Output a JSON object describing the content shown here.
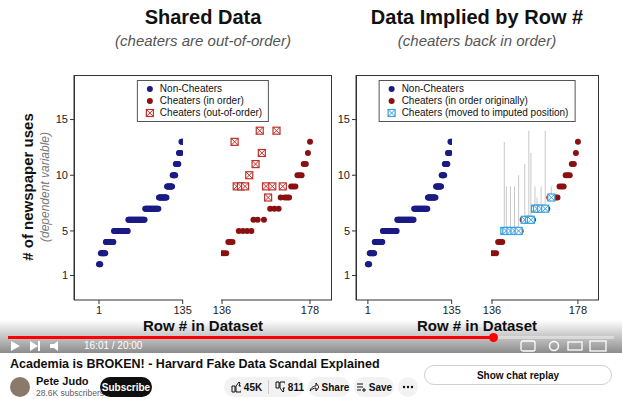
{
  "chart_data": [
    {
      "type": "scatter",
      "title": "Shared Data",
      "subtitle": "(cheaters are out-of-order)",
      "y_label": "# of newspaper uses",
      "y_label_note": "(dependent variable)",
      "x_label": "Row # in Dataset",
      "ylim": [
        -1.2,
        19
      ],
      "yticks": [
        1,
        5,
        10,
        15
      ],
      "legend": "top",
      "x_axes": [
        {
          "xlim": [
            -39,
            135.5
          ],
          "xticks": [
            1,
            135
          ]
        },
        {
          "xlim": [
            135.5,
            188.5
          ],
          "xticks": [
            136,
            178
          ]
        }
      ],
      "series": [
        {
          "name": "Non-Cheaters",
          "color": "#1b1b85",
          "marker": "circle",
          "x": [
            1,
            2,
            3,
            4,
            5,
            6,
            7,
            8,
            9,
            10,
            11,
            12,
            13,
            14,
            15,
            16,
            17,
            18,
            19,
            20,
            21,
            22,
            23,
            24,
            25,
            26,
            27,
            28,
            29,
            30,
            31,
            32,
            33,
            34,
            35,
            36,
            37,
            38,
            39,
            40,
            41,
            42,
            43,
            44,
            45,
            46,
            47,
            48,
            49,
            50,
            51,
            52,
            53,
            54,
            55,
            56,
            57,
            58,
            59,
            60,
            61,
            62,
            63,
            64,
            65,
            66,
            67,
            68,
            69,
            70,
            71,
            72,
            73,
            74,
            75,
            76,
            77,
            78,
            79,
            80,
            81,
            82,
            83,
            84,
            85,
            86,
            87,
            88,
            89,
            90,
            91,
            92,
            93,
            94,
            95,
            96,
            97,
            98,
            99,
            100,
            101,
            102,
            103,
            104,
            105,
            106,
            107,
            108,
            109,
            110,
            111,
            112,
            113,
            114,
            115,
            116,
            117,
            118,
            119,
            120,
            121,
            122,
            123,
            124,
            125,
            126,
            127,
            128,
            129,
            130,
            131,
            132,
            133,
            134,
            135
          ],
          "values": [
            2,
            2,
            2,
            3,
            3,
            3,
            3,
            3,
            3,
            3,
            3,
            4,
            4,
            4,
            4,
            4,
            4,
            4,
            4,
            4,
            4,
            4,
            4,
            4,
            5,
            5,
            5,
            5,
            5,
            5,
            5,
            5,
            5,
            5,
            5,
            5,
            5,
            5,
            5,
            5,
            5,
            5,
            5,
            5,
            5,
            5,
            5,
            6,
            6,
            6,
            6,
            6,
            6,
            6,
            6,
            6,
            6,
            6,
            6,
            6,
            6,
            6,
            6,
            6,
            6,
            6,
            6,
            6,
            6,
            6,
            6,
            6,
            6,
            6,
            7,
            7,
            7,
            7,
            7,
            7,
            7,
            7,
            7,
            7,
            7,
            7,
            7,
            7,
            7,
            7,
            7,
            7,
            7,
            7,
            7,
            7,
            8,
            8,
            8,
            8,
            8,
            8,
            8,
            8,
            8,
            8,
            8,
            8,
            8,
            9,
            9,
            9,
            9,
            9,
            9,
            9,
            9,
            9,
            10,
            10,
            10,
            10,
            10,
            11,
            11,
            11,
            11,
            11,
            12,
            12,
            12,
            12,
            13,
            13,
            13
          ]
        },
        {
          "name": "Cheaters (in order)",
          "color": "#8b1010",
          "marker": "circle",
          "x": [
            136,
            137,
            138,
            139,
            140,
            141,
            144,
            146,
            148,
            150,
            151,
            153,
            156,
            159,
            161,
            163,
            164,
            166,
            167,
            168,
            169,
            170,
            171,
            172,
            173,
            174,
            175,
            176,
            177,
            178
          ],
          "values": [
            3,
            3,
            3,
            4,
            4,
            4,
            5,
            5,
            5,
            5,
            6,
            6,
            6,
            7,
            7,
            7,
            8,
            8,
            8,
            8,
            9,
            9,
            9,
            10,
            10,
            10,
            11,
            11,
            12,
            13
          ]
        },
        {
          "name": "Cheaters (out-of-order)",
          "color": "#c0302b",
          "marker": "boxed-x",
          "x": [
            142,
            143,
            145,
            147,
            149,
            152,
            154,
            155,
            157,
            158,
            160,
            162,
            165
          ],
          "values": [
            13,
            9,
            9,
            9,
            10,
            11,
            14,
            12,
            9,
            8,
            9,
            14,
            9
          ]
        }
      ]
    },
    {
      "type": "scatter",
      "title": "Data Implied by Row #",
      "subtitle": "(cheaters back in order)",
      "x_label": "Row # in Dataset",
      "ylim": [
        -1.2,
        19
      ],
      "yticks": [
        1,
        5,
        10,
        15
      ],
      "legend": "top",
      "x_axes": [
        {
          "xlim": [
            -18,
            135.5
          ],
          "xticks": [
            1,
            135
          ]
        },
        {
          "xlim": [
            135.5,
            188.3
          ],
          "xticks": [
            136,
            178
          ]
        }
      ],
      "series": [
        {
          "name": "Non-Cheaters",
          "color": "#1b1b85",
          "marker": "circle",
          "x": [
            1,
            2,
            3,
            4,
            5,
            6,
            7,
            8,
            9,
            10,
            11,
            12,
            13,
            14,
            15,
            16,
            17,
            18,
            19,
            20,
            21,
            22,
            23,
            24,
            25,
            26,
            27,
            28,
            29,
            30,
            31,
            32,
            33,
            34,
            35,
            36,
            37,
            38,
            39,
            40,
            41,
            42,
            43,
            44,
            45,
            46,
            47,
            48,
            49,
            50,
            51,
            52,
            53,
            54,
            55,
            56,
            57,
            58,
            59,
            60,
            61,
            62,
            63,
            64,
            65,
            66,
            67,
            68,
            69,
            70,
            71,
            72,
            73,
            74,
            75,
            76,
            77,
            78,
            79,
            80,
            81,
            82,
            83,
            84,
            85,
            86,
            87,
            88,
            89,
            90,
            91,
            92,
            93,
            94,
            95,
            96,
            97,
            98,
            99,
            100,
            101,
            102,
            103,
            104,
            105,
            106,
            107,
            108,
            109,
            110,
            111,
            112,
            113,
            114,
            115,
            116,
            117,
            118,
            119,
            120,
            121,
            122,
            123,
            124,
            125,
            126,
            127,
            128,
            129,
            130,
            131,
            132,
            133,
            134,
            135
          ],
          "values": [
            2,
            2,
            2,
            3,
            3,
            3,
            3,
            3,
            3,
            3,
            3,
            4,
            4,
            4,
            4,
            4,
            4,
            4,
            4,
            4,
            4,
            4,
            4,
            4,
            5,
            5,
            5,
            5,
            5,
            5,
            5,
            5,
            5,
            5,
            5,
            5,
            5,
            5,
            5,
            5,
            5,
            5,
            5,
            5,
            5,
            5,
            5,
            6,
            6,
            6,
            6,
            6,
            6,
            6,
            6,
            6,
            6,
            6,
            6,
            6,
            6,
            6,
            6,
            6,
            6,
            6,
            6,
            6,
            6,
            6,
            6,
            6,
            6,
            6,
            7,
            7,
            7,
            7,
            7,
            7,
            7,
            7,
            7,
            7,
            7,
            7,
            7,
            7,
            7,
            7,
            7,
            7,
            7,
            7,
            7,
            7,
            8,
            8,
            8,
            8,
            8,
            8,
            8,
            8,
            8,
            8,
            8,
            8,
            8,
            9,
            9,
            9,
            9,
            9,
            9,
            9,
            9,
            9,
            10,
            10,
            10,
            10,
            10,
            11,
            11,
            11,
            11,
            11,
            12,
            12,
            12,
            12,
            13,
            13,
            13
          ]
        },
        {
          "name": "Cheaters (in order originally)",
          "color": "#8b1010",
          "marker": "circle",
          "x": [
            136,
            137,
            138,
            139,
            140,
            141,
            144,
            146,
            148,
            150,
            151,
            153,
            156,
            159,
            161,
            163,
            164,
            166,
            167,
            168,
            169,
            170,
            171,
            172,
            173,
            174,
            175,
            176,
            177,
            178
          ],
          "values": [
            3,
            3,
            3,
            4,
            4,
            4,
            5,
            5,
            5,
            5,
            6,
            6,
            6,
            7,
            7,
            7,
            8,
            8,
            8,
            8,
            9,
            9,
            9,
            10,
            10,
            10,
            11,
            11,
            12,
            13
          ]
        },
        {
          "name": "Cheaters (moved to imputed position)",
          "color": "#3aa0e0",
          "marker": "boxed-x",
          "x": [
            142,
            143,
            145,
            147,
            149,
            152,
            154,
            155,
            157,
            158,
            160,
            162,
            165
          ],
          "values": [
            5,
            5,
            5,
            5,
            5,
            6,
            6,
            6,
            7,
            7,
            7,
            7,
            8
          ],
          "shifted_from": [
            13,
            9,
            9,
            9,
            10,
            11,
            14,
            12,
            9,
            8,
            9,
            14,
            9
          ]
        }
      ]
    }
  ],
  "player": {
    "time": "16:01 / 20:00"
  },
  "video": {
    "title": "Academia is BROKEN! - Harvard Fake Data Scandal Explained",
    "channel": "Pete Judo",
    "subscribers": "28.6K subscribers",
    "subscribe": "Subscribe",
    "likes": "45K",
    "dislikes": "811",
    "share": "Share",
    "save": "Save",
    "chat": "Show chat replay"
  }
}
